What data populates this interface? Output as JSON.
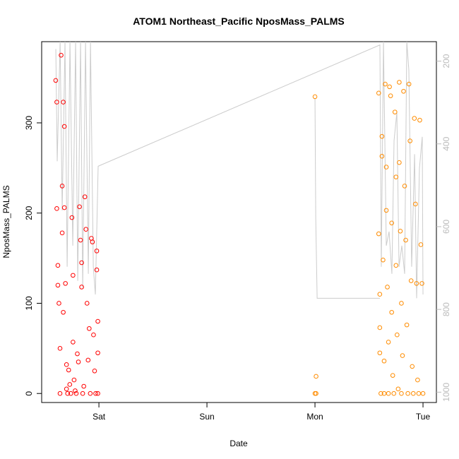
{
  "chart_data": {
    "type": "scatter",
    "title": "ATOM1 Northeast_Pacific NposMass_PALMS",
    "xlabel": "Date",
    "ylabel": "NposMass_PALMS",
    "xlim": [
      -0.53,
      3.124
    ],
    "xticks": [
      {
        "value": 0,
        "label": "Sat"
      },
      {
        "value": 1,
        "label": "Sun"
      },
      {
        "value": 2,
        "label": "Mon"
      },
      {
        "value": 3,
        "label": "Tue"
      }
    ],
    "ylim": [
      -10,
      390
    ],
    "yticks": [
      0,
      100,
      200,
      300
    ],
    "y2lim": [
      1025,
      153
    ],
    "y2ticks": [
      200,
      400,
      600,
      800,
      1000
    ],
    "y2color": "#bbbbbb",
    "series": [
      {
        "color": "#ff0000",
        "x": [
          -0.4,
          -0.39,
          -0.39,
          -0.38,
          -0.38,
          -0.37,
          -0.36,
          -0.36,
          -0.35,
          -0.34,
          -0.34,
          -0.33,
          -0.33,
          -0.32,
          -0.32,
          -0.31,
          -0.3,
          -0.3,
          -0.29,
          -0.28,
          -0.27,
          -0.26,
          -0.25,
          -0.24,
          -0.24,
          -0.23,
          -0.22,
          -0.21,
          -0.2,
          -0.19,
          -0.18,
          -0.17,
          -0.16,
          -0.16,
          -0.15,
          -0.14,
          -0.13,
          -0.12,
          -0.11,
          -0.1,
          -0.09,
          -0.08,
          -0.07,
          -0.06,
          -0.05,
          -0.04,
          -0.03,
          -0.02,
          -0.02,
          -0.01,
          -0.01,
          -0.01
        ],
        "values": [
          347,
          323,
          205,
          142,
          120,
          100,
          50,
          0,
          375,
          230,
          178,
          323,
          90,
          296,
          206,
          122,
          32,
          5,
          0,
          26,
          10,
          0,
          195,
          131,
          57,
          15,
          3,
          0,
          44,
          35,
          207,
          170,
          145,
          118,
          0,
          8,
          218,
          182,
          100,
          37,
          72,
          0,
          172,
          168,
          65,
          25,
          0,
          158,
          137,
          80,
          45,
          0
        ]
      },
      {
        "color": "#ff8c00",
        "x": [
          2.0,
          2.01,
          2.01,
          2.0,
          2.59,
          2.59,
          2.6,
          2.6,
          2.6,
          2.61,
          2.62,
          2.62,
          2.63,
          2.64,
          2.64,
          2.65,
          2.66,
          2.66,
          2.67,
          2.68,
          2.68,
          2.69,
          2.7,
          2.71,
          2.71,
          2.72,
          2.73,
          2.74,
          2.75,
          2.75,
          2.76,
          2.77,
          2.78,
          2.78,
          2.79,
          2.8,
          2.8,
          2.81,
          2.82,
          2.83,
          2.84,
          2.85,
          2.86,
          2.87,
          2.88,
          2.89,
          2.9,
          2.91,
          2.92,
          2.93,
          2.94,
          2.95,
          2.96,
          2.97,
          2.98,
          2.99,
          3.0
        ],
        "values": [
          329,
          19,
          0,
          0,
          333,
          177,
          110,
          73,
          45,
          0,
          285,
          263,
          148,
          36,
          0,
          343,
          251,
          203,
          118,
          57,
          0,
          340,
          330,
          189,
          90,
          20,
          0,
          312,
          240,
          142,
          65,
          5,
          345,
          256,
          180,
          100,
          0,
          42,
          335,
          230,
          170,
          76,
          0,
          343,
          280,
          125,
          30,
          0,
          305,
          210,
          122,
          15,
          0,
          303,
          165,
          122,
          0
        ]
      },
      {
        "type": "line",
        "axis": "y2",
        "color": "#cccccc",
        "x": [
          -0.399,
          -0.386,
          -0.359,
          -0.34,
          -0.314,
          -0.294,
          -0.268,
          -0.242,
          -0.216,
          -0.196,
          -0.17,
          -0.15,
          -0.124,
          -0.098,
          -0.078,
          -0.052,
          -0.033,
          -0.007,
          2.601,
          2.614,
          2.634,
          2.66,
          2.686,
          2.712,
          2.732,
          2.758,
          2.778,
          2.804,
          2.83,
          2.85,
          2.869,
          2.895,
          2.922,
          2.941,
          2.967,
          2.993,
          3.0,
          null,
          2.0,
          2.007,
          2.02,
          2.601
        ],
        "values": [
          171,
          442,
          153,
          561,
          153,
          697,
          153,
          646,
          153,
          731,
          153,
          747,
          153,
          714,
          153,
          697,
          764,
          454,
          161,
          697,
          153,
          646,
          612,
          714,
          392,
          324,
          697,
          646,
          714,
          153,
          222,
          697,
          425,
          773,
          459,
          383,
          764,
          null,
          290,
          578,
          773,
          773
        ]
      }
    ]
  }
}
